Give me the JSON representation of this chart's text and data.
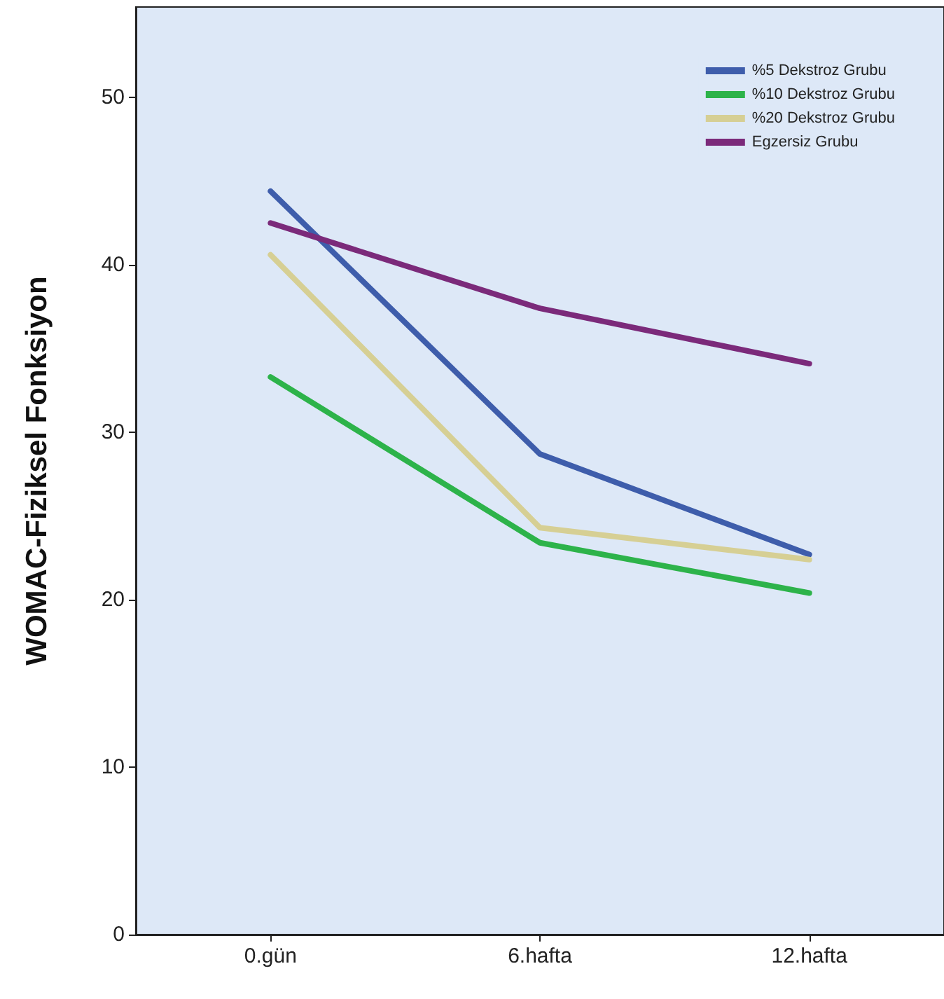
{
  "chart_data": {
    "type": "line",
    "ylabel": "WOMAC-Fiziksel Fonksiyon",
    "categories": [
      "0.gün",
      "6.hafta",
      "12.hafta"
    ],
    "series": [
      {
        "name": "%5 Dekstroz Grubu",
        "color": "#3e5dab",
        "values": [
          44.4,
          28.7,
          22.7
        ]
      },
      {
        "name": "%10 Dekstroz Grubu",
        "color": "#2db34a",
        "values": [
          33.3,
          23.4,
          20.4
        ]
      },
      {
        "name": "%20 Dekstroz Grubu",
        "color": "#d6cf94",
        "values": [
          40.6,
          24.3,
          22.4
        ]
      },
      {
        "name": "Egzersiz Grubu",
        "color": "#7b2a7a",
        "values": [
          42.5,
          37.4,
          34.1
        ]
      }
    ],
    "ylim": [
      0,
      55.4
    ],
    "yticks": [
      0,
      10,
      20,
      30,
      40,
      50
    ],
    "grid": false,
    "legend": "top right",
    "marker": "none",
    "line_style": "solid"
  }
}
